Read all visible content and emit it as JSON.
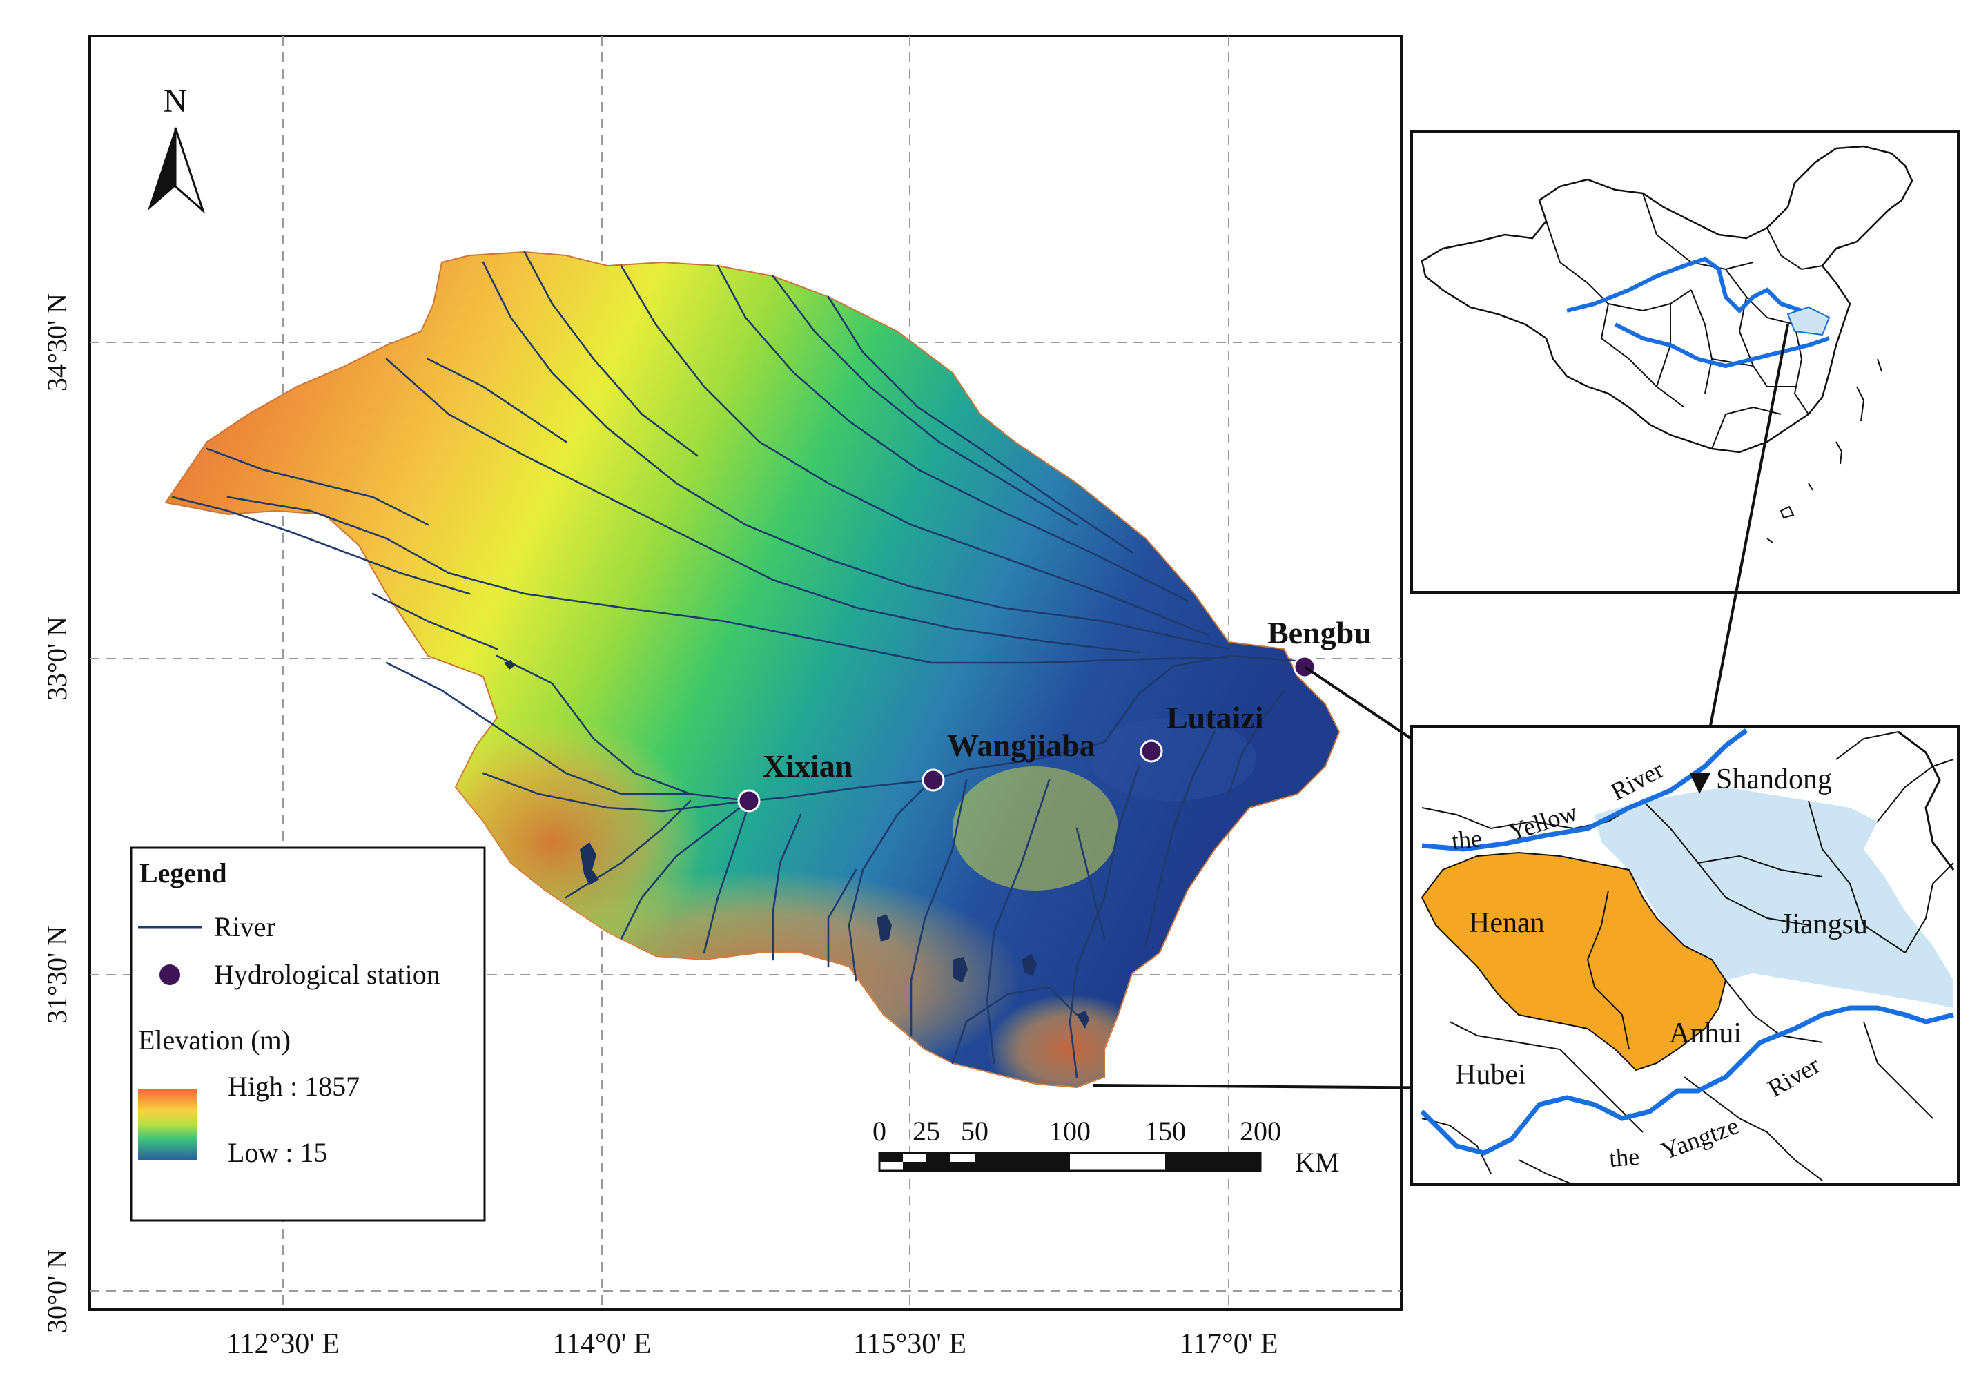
{
  "map": {
    "north_label": "N",
    "lat_labels": [
      "34°30' N",
      "33°0' N",
      "31°30' N",
      "30°0' N"
    ],
    "lon_labels": [
      "112°30' E",
      "114°0' E",
      "115°30' E",
      "117°0' E"
    ],
    "stations": [
      {
        "name": "Xixian"
      },
      {
        "name": "Wangjiaba"
      },
      {
        "name": "Lutaizi"
      },
      {
        "name": "Bengbu"
      }
    ]
  },
  "legend": {
    "title": "Legend",
    "river_label": "River",
    "station_label": "Hydrological station",
    "elevation_title": "Elevation (m)",
    "high_label": "High : 1857",
    "low_label": "Low : 15"
  },
  "scalebar": {
    "ticks": [
      "0",
      "25",
      "50",
      "100",
      "150",
      "200"
    ],
    "unit": "KM"
  },
  "inset": {
    "labels": {
      "shandong": "Shandong",
      "henan": "Henan",
      "jiangsu": "Jiangsu",
      "anhui": "Anhui",
      "hubei": "Hubei",
      "yellow_river_1": "the",
      "yellow_river_2": "Yellow",
      "yellow_river_3": "River",
      "yangtze_1": "the",
      "yangtze_2": "Yangtze",
      "yangtze_3": "River"
    }
  },
  "colors": {
    "river": "#1f3a6b",
    "station": "#3d1458",
    "province_henan": "#f5a623",
    "basin_light": "#cde4f5",
    "major_river": "#1a6fe0",
    "elev_high": "#d7191c",
    "elev_mid": "#ffff33",
    "elev_low": "#2b5f9e"
  }
}
